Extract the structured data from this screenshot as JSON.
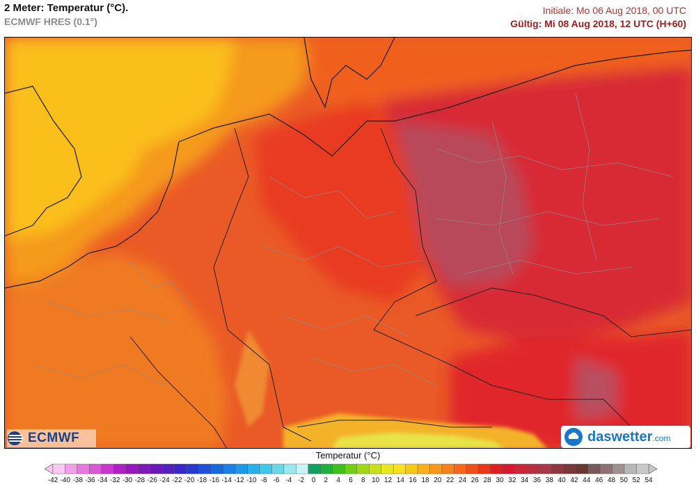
{
  "header": {
    "title": "2 Meter: Temperatur (°C).",
    "subtitle": "ECMWF HRES (0.1°)",
    "initial": "Initiale: Mo 06 Aug 2018, 00 UTC",
    "valid": "Gültig: Mi 08 Aug 2018, 12 UTC (H+60)"
  },
  "logos": {
    "left": "ECMWF",
    "right_main": "daswetter",
    "right_suffix": ".com"
  },
  "legend": {
    "title": "Temperatur (°C)",
    "ticks": [
      "-42",
      "-40",
      "-38",
      "-36",
      "-34",
      "-32",
      "-30",
      "-28",
      "-26",
      "-24",
      "-22",
      "-20",
      "-18",
      "-16",
      "-14",
      "-12",
      "-10",
      "-8",
      "-6",
      "-4",
      "-2",
      "0",
      "2",
      "4",
      "6",
      "8",
      "10",
      "12",
      "14",
      "16",
      "18",
      "20",
      "22",
      "24",
      "26",
      "28",
      "30",
      "32",
      "34",
      "36",
      "38",
      "40",
      "42",
      "44",
      "46",
      "48",
      "50",
      "52",
      "54"
    ],
    "colors": [
      "#f8c8f0",
      "#f0a0e8",
      "#e878e0",
      "#d858d8",
      "#c838d0",
      "#b020c8",
      "#9818c0",
      "#8018b8",
      "#6818b8",
      "#5020c0",
      "#3828c8",
      "#2838d0",
      "#2050d8",
      "#1868e0",
      "#1880e8",
      "#2098e8",
      "#28b0e8",
      "#40c8e8",
      "#68d8e8",
      "#98e8f0",
      "#c8f4f8",
      "#10a060",
      "#20b040",
      "#40c020",
      "#70d018",
      "#a0d818",
      "#c8e018",
      "#e8e820",
      "#f8e020",
      "#f8c818",
      "#f8b018",
      "#f89818",
      "#f88018",
      "#f86818",
      "#f05018",
      "#e83818",
      "#e02020",
      "#d81830",
      "#c82838",
      "#b83040",
      "#a83848",
      "#903840",
      "#783838",
      "#683830",
      "#785858",
      "#907070",
      "#a09090",
      "#b8b8b8",
      "#c8c8c8"
    ]
  }
}
